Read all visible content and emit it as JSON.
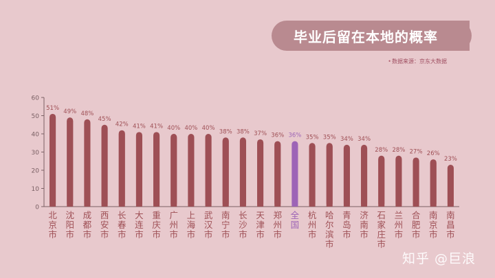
{
  "title": "毕业后留在本地的概率",
  "source": "数据来源：京东大数据",
  "watermark": "知乎 @巨浪",
  "colors": {
    "background": "#e8c9cd",
    "bar": "#9e4f55",
    "highlight": "#9d64b6",
    "label": "#9e4f55",
    "axis": "#7a6064",
    "grid": "#dcb5ba"
  },
  "chart_data": {
    "type": "bar",
    "categories": [
      "北京市",
      "沈阳市",
      "成都市",
      "西安市",
      "长春市",
      "大连市",
      "重庆市",
      "广州市",
      "上海市",
      "武汉市",
      "南宁市",
      "长沙市",
      "天津市",
      "郑州市",
      "全国",
      "杭州市",
      "哈尔滨市",
      "青岛市",
      "济南市",
      "石家庄市",
      "兰州市",
      "合肥市",
      "南京市",
      "南昌市"
    ],
    "values": [
      51,
      49,
      48,
      45,
      42,
      41,
      41,
      40,
      40,
      40,
      38,
      38,
      37,
      36,
      36,
      35,
      35,
      34,
      34,
      28,
      28,
      27,
      26,
      23
    ],
    "value_labels": [
      "51%",
      "49%",
      "48%",
      "45%",
      "42%",
      "41%",
      "41%",
      "40%",
      "40%",
      "40%",
      "38%",
      "38%",
      "37%",
      "36%",
      "36%",
      "35%",
      "35%",
      "34%",
      "34%",
      "28%",
      "28%",
      "27%",
      "26%",
      "23%"
    ],
    "highlight_category": "全国",
    "ylim": [
      0,
      60
    ],
    "yticks": [
      0,
      10,
      20,
      30,
      40,
      50,
      60
    ],
    "grid": false,
    "legend": "none"
  }
}
